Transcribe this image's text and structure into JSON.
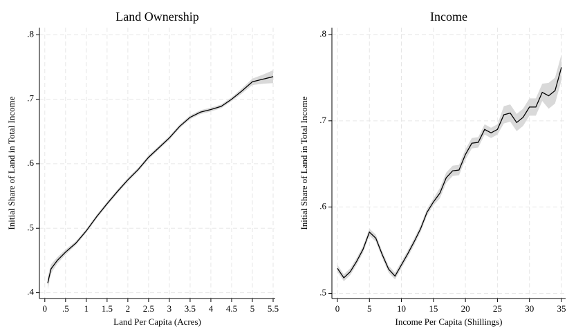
{
  "chart_data": [
    {
      "type": "line",
      "title": "Land Ownership",
      "x_label": "Land Per Capita (Acres)",
      "y_label": "Initial Share of Land in Total Income",
      "x": [
        0.07,
        0.15,
        0.3,
        0.5,
        0.75,
        1,
        1.25,
        1.5,
        1.75,
        2,
        2.25,
        2.5,
        2.75,
        3,
        3.25,
        3.5,
        3.75,
        4,
        4.25,
        4.5,
        4.75,
        5,
        5.25,
        5.5
      ],
      "series": [
        {
          "color": "#000000",
          "band_color": "#d9d9d9",
          "values": [
            0.415,
            0.437,
            0.45,
            0.463,
            0.477,
            0.496,
            0.518,
            0.538,
            0.557,
            0.575,
            0.591,
            0.61,
            0.625,
            0.64,
            0.658,
            0.672,
            0.68,
            0.684,
            0.689,
            0.7,
            0.713,
            0.727,
            0.731,
            0.735
          ],
          "ci_lower": [
            0.405,
            0.43,
            0.445,
            0.459,
            0.474,
            0.493,
            0.515,
            0.535,
            0.554,
            0.572,
            0.588,
            0.607,
            0.622,
            0.637,
            0.655,
            0.669,
            0.677,
            0.681,
            0.686,
            0.697,
            0.709,
            0.722,
            0.724,
            0.725
          ],
          "ci_upper": [
            0.425,
            0.444,
            0.455,
            0.467,
            0.48,
            0.499,
            0.521,
            0.541,
            0.56,
            0.578,
            0.594,
            0.613,
            0.628,
            0.643,
            0.661,
            0.675,
            0.683,
            0.687,
            0.692,
            0.703,
            0.717,
            0.732,
            0.738,
            0.745
          ]
        }
      ],
      "xlim": [
        -0.13,
        5.55
      ],
      "ylim": [
        0.391,
        0.811
      ],
      "xticks": [
        0,
        {
          "value": 0.5,
          "label": ".5"
        },
        1,
        1.5,
        2,
        2.5,
        3,
        3.5,
        4,
        4.5,
        5,
        5.5
      ],
      "yticks": [
        {
          "value": 0.4,
          "label": ".4"
        },
        {
          "value": 0.5,
          "label": ".5"
        },
        {
          "value": 0.6,
          "label": ".6"
        },
        {
          "value": 0.7,
          "label": ".7"
        },
        {
          "value": 0.8,
          "label": ".8"
        }
      ],
      "grid": true
    },
    {
      "type": "line",
      "title": "Income",
      "x_label": "Income Per Capita (Shillings)",
      "y_label": "Initial Share of Land in Total Income",
      "x": [
        0,
        1,
        2,
        3,
        4,
        5,
        6,
        7,
        8,
        9,
        10,
        11,
        12,
        13,
        14,
        15,
        16,
        17,
        18,
        19,
        20,
        21,
        22,
        23,
        24,
        25,
        26,
        27,
        28,
        29,
        30,
        31,
        32,
        33,
        34,
        35
      ],
      "series": [
        {
          "color": "#000000",
          "band_color": "#d9d9d9",
          "values": [
            0.529,
            0.518,
            0.525,
            0.537,
            0.551,
            0.571,
            0.564,
            0.545,
            0.528,
            0.52,
            0.533,
            0.546,
            0.56,
            0.575,
            0.594,
            0.606,
            0.616,
            0.634,
            0.642,
            0.643,
            0.661,
            0.674,
            0.675,
            0.69,
            0.686,
            0.69,
            0.707,
            0.709,
            0.698,
            0.704,
            0.716,
            0.716,
            0.733,
            0.729,
            0.735,
            0.762
          ],
          "ci_lower": [
            0.525,
            0.514,
            0.521,
            0.533,
            0.547,
            0.567,
            0.56,
            0.541,
            0.524,
            0.516,
            0.529,
            0.542,
            0.556,
            0.571,
            0.59,
            0.602,
            0.61,
            0.628,
            0.636,
            0.637,
            0.655,
            0.668,
            0.669,
            0.684,
            0.68,
            0.684,
            0.697,
            0.699,
            0.688,
            0.694,
            0.706,
            0.706,
            0.723,
            0.714,
            0.72,
            0.747
          ],
          "ci_upper": [
            0.533,
            0.522,
            0.529,
            0.541,
            0.555,
            0.575,
            0.568,
            0.549,
            0.532,
            0.524,
            0.537,
            0.55,
            0.564,
            0.579,
            0.598,
            0.61,
            0.622,
            0.64,
            0.648,
            0.649,
            0.667,
            0.68,
            0.681,
            0.696,
            0.692,
            0.696,
            0.717,
            0.719,
            0.708,
            0.714,
            0.726,
            0.726,
            0.743,
            0.744,
            0.75,
            0.777
          ]
        }
      ],
      "xlim": [
        -0.86,
        35.65
      ],
      "ylim": [
        0.494,
        0.808
      ],
      "xticks": [
        0,
        5,
        10,
        15,
        20,
        25,
        30,
        35
      ],
      "yticks": [
        {
          "value": 0.5,
          "label": ".5"
        },
        {
          "value": 0.6,
          "label": ".6"
        },
        {
          "value": 0.7,
          "label": ".7"
        },
        {
          "value": 0.8,
          "label": ".8"
        }
      ],
      "grid": true
    }
  ]
}
